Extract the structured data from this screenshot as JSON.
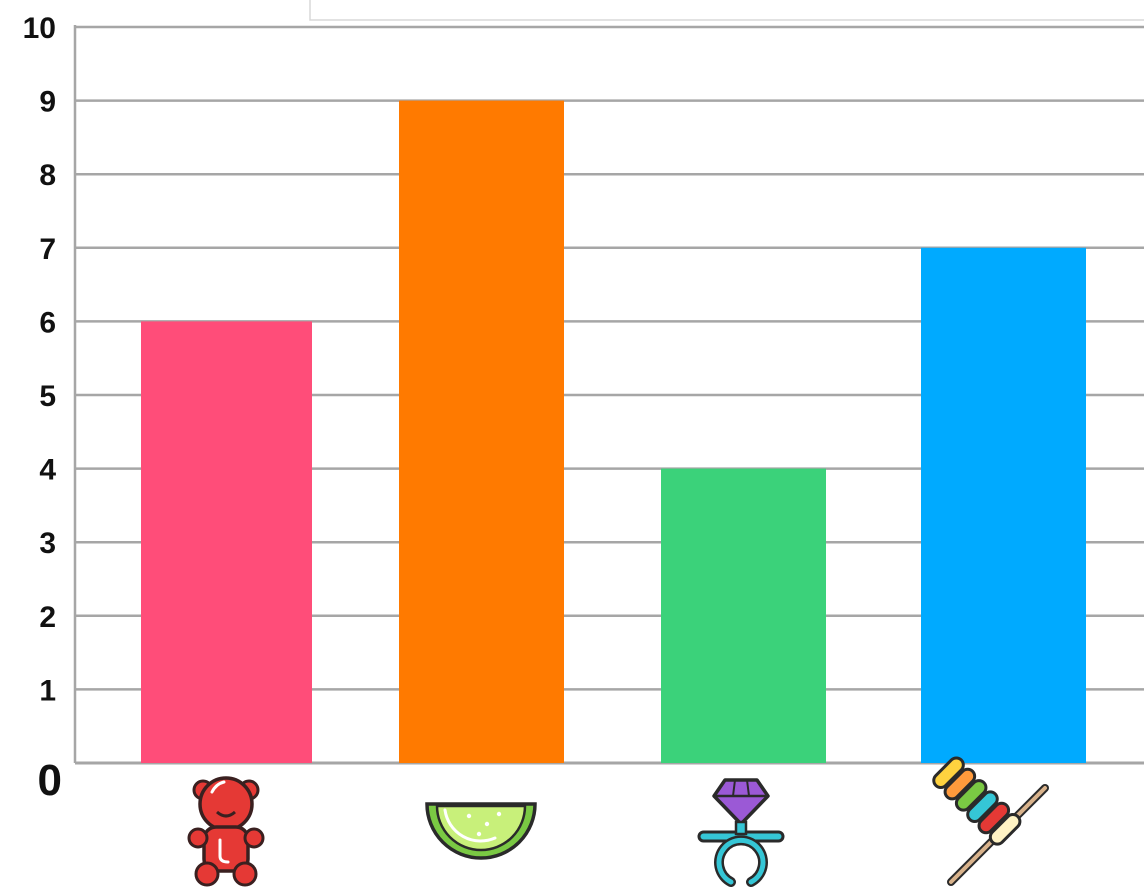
{
  "chart_data": {
    "type": "bar",
    "categories": [
      "gummy-bear",
      "watermelon-candy",
      "ring-pop",
      "candy-skewer"
    ],
    "values": [
      6,
      9,
      4,
      7
    ],
    "bar_colors": [
      "#ff4d79",
      "#ff7a00",
      "#3bd27a",
      "#00aaff"
    ],
    "ylim": [
      0,
      10
    ],
    "yticks": [
      "0",
      "1",
      "2",
      "3",
      "4",
      "5",
      "6",
      "7",
      "8",
      "9",
      "10"
    ],
    "grid": true,
    "gridline_color": "#a6a6a6",
    "category_icons": [
      "gummy-bear-icon",
      "watermelon-slice-icon",
      "ring-pop-icon",
      "candy-skewer-icon"
    ]
  }
}
